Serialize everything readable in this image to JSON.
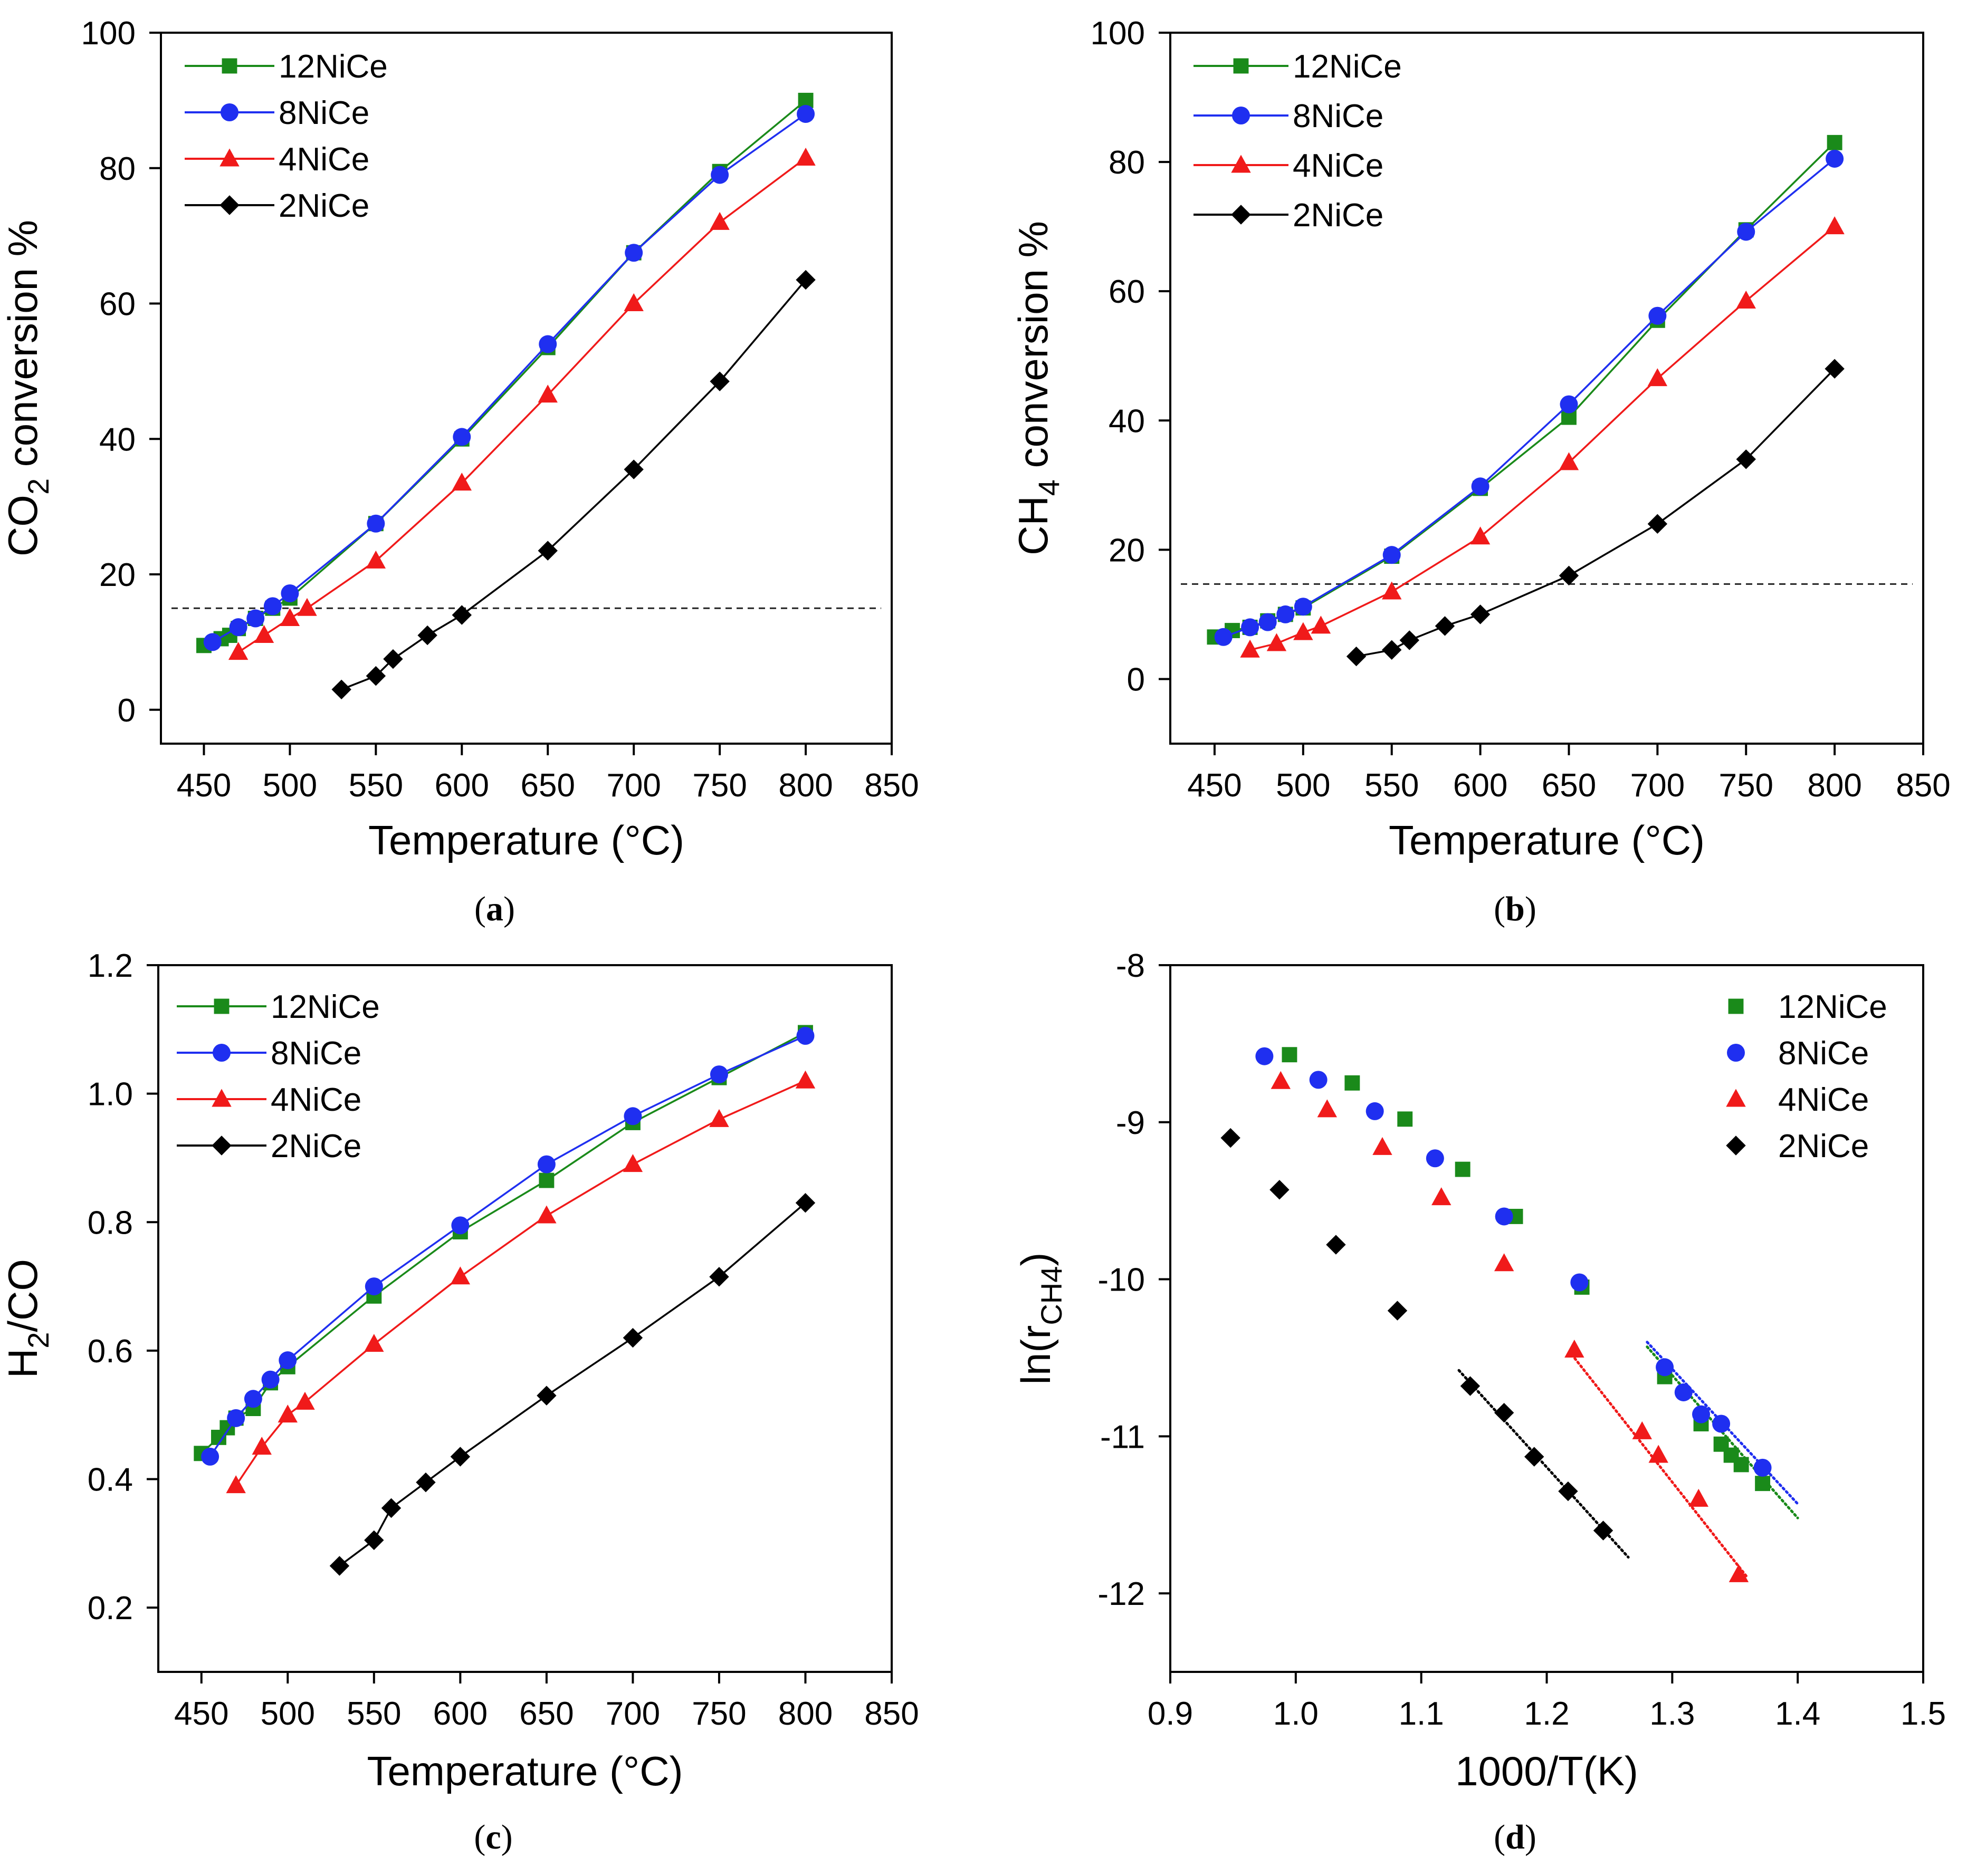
{
  "figure": {
    "panels": [
      "a",
      "b",
      "c",
      "d"
    ],
    "series_colors": {
      "12NiCe": "#1a8a1a",
      "8NiCe": "#1f2ff0",
      "4NiCe": "#f01a1a",
      "2NiCe": "#000000"
    },
    "series_markers": {
      "12NiCe": "square-icon",
      "8NiCe": "circle-icon",
      "4NiCe": "triangle-icon",
      "2NiCe": "diamond-icon"
    }
  },
  "chart_data": [
    {
      "type": "line",
      "panel": "a",
      "caption": "a",
      "xlabel": "Temperature (°C)",
      "ylabel": "CO₂ conversion %",
      "ylabel_parts": [
        "CO",
        "2",
        " conversion %"
      ],
      "xlim": [
        425,
        850
      ],
      "ylim": [
        -5,
        100
      ],
      "xticks": [
        450,
        500,
        550,
        600,
        650,
        700,
        750,
        800,
        850
      ],
      "yticks": [
        0,
        20,
        40,
        60,
        80,
        100
      ],
      "reference_line": 15,
      "legend_position": "top-left",
      "series": [
        {
          "name": "12NiCe",
          "x": [
            450,
            460,
            465,
            470,
            480,
            490,
            500,
            550,
            600,
            650,
            700,
            750,
            800
          ],
          "y": [
            9.5,
            10.5,
            11,
            12,
            13.5,
            15,
            16.5,
            27.5,
            40,
            53.5,
            67.5,
            79.5,
            90
          ]
        },
        {
          "name": "8NiCe",
          "x": [
            455,
            470,
            480,
            490,
            500,
            550,
            600,
            650,
            700,
            750,
            800
          ],
          "y": [
            10,
            12.2,
            13.5,
            15.3,
            17.2,
            27.5,
            40.3,
            54,
            67.5,
            79,
            88
          ]
        },
        {
          "name": "4NiCe",
          "x": [
            470,
            485,
            500,
            510,
            550,
            600,
            650,
            700,
            750,
            800
          ],
          "y": [
            8.5,
            11,
            13.5,
            15,
            22,
            33.5,
            46.5,
            60,
            72,
            81.5
          ]
        },
        {
          "name": "2NiCe",
          "x": [
            530,
            550,
            560,
            580,
            600,
            650,
            700,
            750,
            800
          ],
          "y": [
            3,
            5,
            7.5,
            11,
            14,
            23.5,
            35.5,
            48.5,
            63.5
          ]
        }
      ]
    },
    {
      "type": "line",
      "panel": "b",
      "caption": "b",
      "xlabel": "Temperature (°C)",
      "ylabel": "CH₄ conversion %",
      "ylabel_parts": [
        "CH",
        "4",
        " conversion %"
      ],
      "xlim": [
        425,
        850
      ],
      "ylim": [
        -10,
        100
      ],
      "xticks": [
        450,
        500,
        550,
        600,
        650,
        700,
        750,
        800,
        850
      ],
      "yticks": [
        0,
        20,
        40,
        60,
        80,
        100
      ],
      "reference_line": 14.7,
      "legend_position": "top-left",
      "series": [
        {
          "name": "12NiCe",
          "x": [
            450,
            460,
            470,
            480,
            490,
            500,
            550,
            600,
            650,
            700,
            750,
            800
          ],
          "y": [
            6.5,
            7.5,
            8,
            9,
            10,
            11,
            19,
            29.5,
            40.5,
            55.5,
            69.5,
            83
          ]
        },
        {
          "name": "8NiCe",
          "x": [
            455,
            470,
            480,
            490,
            500,
            550,
            600,
            650,
            700,
            750,
            800
          ],
          "y": [
            6.5,
            8,
            8.8,
            10,
            11.2,
            19.2,
            29.8,
            42.5,
            56.2,
            69.2,
            80.5
          ]
        },
        {
          "name": "4NiCe",
          "x": [
            470,
            485,
            500,
            510,
            550,
            600,
            650,
            700,
            750,
            800
          ],
          "y": [
            4.5,
            5.5,
            7.2,
            8.2,
            13.5,
            22,
            33.5,
            46.5,
            58.5,
            70
          ]
        },
        {
          "name": "2NiCe",
          "x": [
            530,
            550,
            560,
            580,
            600,
            650,
            700,
            750,
            800
          ],
          "y": [
            3.5,
            4.5,
            6,
            8.2,
            10,
            16,
            24,
            34,
            48
          ]
        }
      ]
    },
    {
      "type": "line",
      "panel": "c",
      "caption": "c",
      "xlabel": "Temperature (°C)",
      "ylabel": "H₂/CO",
      "ylabel_parts": [
        "H",
        "2",
        "/CO"
      ],
      "xlim": [
        425,
        850
      ],
      "ylim": [
        0.1,
        1.2
      ],
      "xticks": [
        450,
        500,
        550,
        600,
        650,
        700,
        750,
        800,
        850
      ],
      "yticks": [
        0.2,
        0.4,
        0.6,
        0.8,
        1.0,
        1.2
      ],
      "ytick_labels": [
        "0.2",
        "0.4",
        "0.6",
        "0.8",
        "1.0",
        "1.2"
      ],
      "legend_position": "top-left",
      "series": [
        {
          "name": "12NiCe",
          "x": [
            450,
            460,
            465,
            470,
            480,
            490,
            500,
            550,
            600,
            650,
            700,
            750,
            800
          ],
          "y": [
            0.44,
            0.465,
            0.48,
            0.495,
            0.51,
            0.55,
            0.575,
            0.685,
            0.785,
            0.865,
            0.955,
            1.025,
            1.095
          ]
        },
        {
          "name": "8NiCe",
          "x": [
            455,
            470,
            480,
            490,
            500,
            550,
            600,
            650,
            700,
            750,
            800
          ],
          "y": [
            0.435,
            0.495,
            0.525,
            0.555,
            0.585,
            0.7,
            0.795,
            0.89,
            0.965,
            1.03,
            1.09
          ]
        },
        {
          "name": "4NiCe",
          "x": [
            470,
            485,
            500,
            510,
            550,
            600,
            650,
            700,
            750,
            800
          ],
          "y": [
            0.39,
            0.45,
            0.5,
            0.52,
            0.61,
            0.715,
            0.81,
            0.89,
            0.96,
            1.02
          ]
        },
        {
          "name": "2NiCe",
          "x": [
            530,
            550,
            560,
            580,
            600,
            650,
            700,
            750,
            800
          ],
          "y": [
            0.265,
            0.305,
            0.355,
            0.395,
            0.435,
            0.53,
            0.62,
            0.715,
            0.83
          ]
        }
      ]
    },
    {
      "type": "scatter",
      "panel": "d",
      "caption": "d",
      "xlabel": "1000/T(K)",
      "ylabel": "ln(r_CH4)",
      "ylabel_parts": [
        "ln(r",
        "CH4",
        ")"
      ],
      "xlim": [
        0.9,
        1.5
      ],
      "ylim": [
        -12.5,
        -8
      ],
      "xticks": [
        0.9,
        1.0,
        1.1,
        1.2,
        1.3,
        1.4,
        1.5
      ],
      "xtick_labels": [
        "0.9",
        "1.0",
        "1.1",
        "1.2",
        "1.3",
        "1.4",
        "1.5"
      ],
      "yticks": [
        -12,
        -11,
        -10,
        -9,
        -8
      ],
      "legend_position": "top-right",
      "series": [
        {
          "name": "12NiCe",
          "x": [
            0.995,
            1.045,
            1.087,
            1.133,
            1.175,
            1.228,
            1.294,
            1.323,
            1.339,
            1.347,
            1.355,
            1.372
          ],
          "y": [
            -8.57,
            -8.75,
            -8.98,
            -9.3,
            -9.6,
            -10.05,
            -10.62,
            -10.92,
            -11.05,
            -11.12,
            -11.18,
            -11.3
          ]
        },
        {
          "name": "8NiCe",
          "x": [
            0.975,
            1.018,
            1.063,
            1.111,
            1.166,
            1.226,
            1.294,
            1.309,
            1.323,
            1.339,
            1.372
          ],
          "y": [
            -8.58,
            -8.73,
            -8.93,
            -9.23,
            -9.6,
            -10.02,
            -10.56,
            -10.72,
            -10.86,
            -10.92,
            -11.2
          ]
        },
        {
          "name": "4NiCe",
          "x": [
            0.988,
            1.025,
            1.069,
            1.116,
            1.166,
            1.222,
            1.276,
            1.289,
            1.321,
            1.353
          ],
          "y": [
            -8.74,
            -8.92,
            -9.16,
            -9.48,
            -9.9,
            -10.45,
            -10.97,
            -11.12,
            -11.4,
            -11.88
          ]
        },
        {
          "name": "2NiCe",
          "x": [
            0.948,
            0.987,
            1.032,
            1.081,
            1.139,
            1.166,
            1.19,
            1.217,
            1.245
          ],
          "y": [
            -9.1,
            -9.43,
            -9.78,
            -10.2,
            -10.68,
            -10.85,
            -11.13,
            -11.35,
            -11.6
          ]
        }
      ],
      "fit_lines": [
        {
          "name": "12NiCe",
          "x": [
            1.28,
            1.4
          ],
          "y": [
            -10.43,
            -11.52
          ]
        },
        {
          "name": "8NiCe",
          "x": [
            1.28,
            1.4
          ],
          "y": [
            -10.4,
            -11.43
          ]
        },
        {
          "name": "4NiCe",
          "x": [
            1.22,
            1.36
          ],
          "y": [
            -10.48,
            -11.9
          ]
        },
        {
          "name": "2NiCe",
          "x": [
            1.13,
            1.265
          ],
          "y": [
            -10.58,
            -11.77
          ]
        }
      ]
    }
  ]
}
